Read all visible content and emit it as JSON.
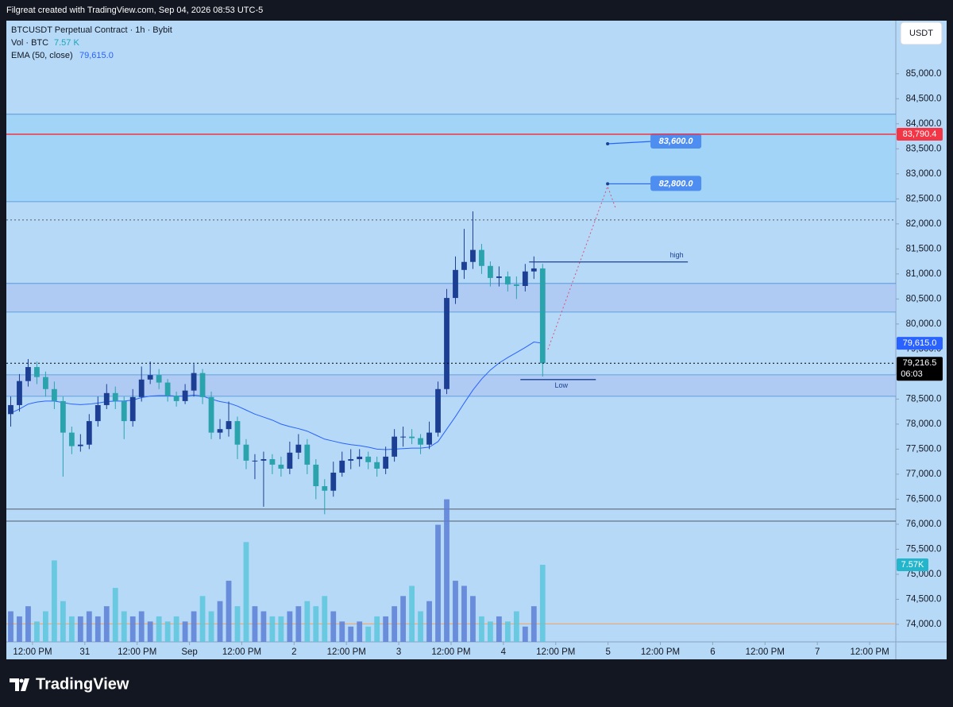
{
  "header": "Filgreat created with TradingView.com, Sep 04, 2026 08:53 UTC-5",
  "brand": "TradingView",
  "chart_data": {
    "type": "candlestick",
    "title": "BTCUSDT Perpetual Contract · 1h · Bybit",
    "volume_label": "Vol · BTC",
    "volume_value": "7.57 K",
    "ema_label": "EMA (50, close)",
    "ema_value": "79,615.0",
    "currency": "USDT",
    "up_color": "#1c3f94",
    "down_color": "#2aa3ad",
    "volume_up_color": "#5d7fd6",
    "volume_down_color": "#5cc6dc",
    "ema_color": "#2962ff",
    "xlim": [
      0,
      204
    ],
    "xticks": [
      {
        "value": 6,
        "label": "12:00 PM"
      },
      {
        "value": 18,
        "label": "31"
      },
      {
        "value": 30,
        "label": "12:00 PM"
      },
      {
        "value": 42,
        "label": "Sep"
      },
      {
        "value": 54,
        "label": "12:00 PM"
      },
      {
        "value": 66,
        "label": "2"
      },
      {
        "value": 78,
        "label": "12:00 PM"
      },
      {
        "value": 90,
        "label": "3"
      },
      {
        "value": 102,
        "label": "12:00 PM"
      },
      {
        "value": 114,
        "label": "4"
      },
      {
        "value": 126,
        "label": "12:00 PM"
      },
      {
        "value": 138,
        "label": "5"
      },
      {
        "value": 150,
        "label": "12:00 PM"
      },
      {
        "value": 162,
        "label": "6"
      },
      {
        "value": 174,
        "label": "12:00 PM"
      },
      {
        "value": 186,
        "label": "7"
      },
      {
        "value": 198,
        "label": "12:00 PM"
      }
    ],
    "ylim": [
      73650,
      86060
    ],
    "yticks": [
      {
        "value": 74000,
        "label": "74,000.0"
      },
      {
        "value": 74500,
        "label": "74,500.0"
      },
      {
        "value": 75000,
        "label": "75,000.0"
      },
      {
        "value": 75500,
        "label": "75,500.0"
      },
      {
        "value": 76000,
        "label": "76,000.0"
      },
      {
        "value": 76500,
        "label": "76,500.0"
      },
      {
        "value": 77000,
        "label": "77,000.0"
      },
      {
        "value": 77500,
        "label": "77,500.0"
      },
      {
        "value": 78000,
        "label": "78,000.0"
      },
      {
        "value": 78500,
        "label": "78,500.0"
      },
      {
        "value": 79000,
        "label": "79,000.0"
      },
      {
        "value": 79500,
        "label": "79,500.0"
      },
      {
        "value": 80000,
        "label": "80,000.0"
      },
      {
        "value": 80500,
        "label": "80,500.0"
      },
      {
        "value": 81000,
        "label": "81,000.0"
      },
      {
        "value": 81500,
        "label": "81,500.0"
      },
      {
        "value": 82000,
        "label": "82,000.0"
      },
      {
        "value": 82500,
        "label": "82,500.0"
      },
      {
        "value": 83000,
        "label": "83,000.0"
      },
      {
        "value": 83500,
        "label": "83,500.0"
      },
      {
        "value": 84000,
        "label": "84,000.0"
      },
      {
        "value": 84500,
        "label": "84,500.0"
      },
      {
        "value": 85000,
        "label": "85,000.0"
      }
    ],
    "vlim": [
      0,
      61
    ],
    "x": [
      1,
      3,
      5,
      7,
      9,
      11,
      13,
      15,
      17,
      19,
      21,
      23,
      25,
      27,
      29,
      31,
      33,
      35,
      37,
      39,
      41,
      43,
      45,
      47,
      49,
      51,
      53,
      55,
      57,
      59,
      61,
      63,
      65,
      67,
      69,
      71,
      73,
      75,
      77,
      79,
      81,
      83,
      85,
      87,
      89,
      91,
      93,
      95,
      97,
      99,
      101,
      103,
      105,
      107,
      109,
      111,
      113,
      115,
      117,
      119,
      121,
      123
    ],
    "open": [
      78200,
      78380,
      78860,
      79140,
      78940,
      78700,
      78460,
      77830,
      77560,
      77590,
      78060,
      78380,
      78620,
      78460,
      78060,
      78540,
      78890,
      78980,
      78830,
      78570,
      78460,
      78670,
      79020,
      78540,
      77830,
      77900,
      78060,
      77590,
      77270,
      77270,
      77300,
      77190,
      77110,
      77430,
      77590,
      77190,
      76760,
      76670,
      77030,
      77270,
      77300,
      77350,
      77240,
      77110,
      77350,
      77750,
      77750,
      77720,
      77590,
      77830,
      78700,
      80520,
      81080,
      81240,
      81480,
      81160,
      80920,
      80950,
      80790,
      80760,
      81050,
      81110
    ],
    "high": [
      78550,
      79000,
      79300,
      79250,
      79050,
      78850,
      78550,
      77950,
      77800,
      78200,
      78550,
      78800,
      78750,
      78550,
      78700,
      79150,
      79250,
      79100,
      78900,
      78650,
      78800,
      79200,
      79100,
      78650,
      78100,
      78450,
      78150,
      77700,
      77400,
      77450,
      77400,
      77350,
      77650,
      77800,
      77700,
      77300,
      76900,
      77250,
      77450,
      77500,
      77500,
      77450,
      77350,
      77550,
      77900,
      77950,
      77900,
      77800,
      78050,
      78850,
      80700,
      81350,
      81900,
      82250,
      81600,
      81250,
      81150,
      81050,
      80950,
      81200,
      81350,
      81200
    ],
    "low": [
      77950,
      78250,
      78750,
      78800,
      78550,
      78300,
      76950,
      77400,
      77450,
      77500,
      77950,
      78300,
      78300,
      77700,
      77950,
      78450,
      78800,
      78700,
      78450,
      78350,
      78400,
      78550,
      78400,
      77700,
      77700,
      77750,
      77300,
      77100,
      76900,
      76350,
      77000,
      76950,
      77000,
      77300,
      77000,
      76500,
      76200,
      76550,
      76950,
      77100,
      77150,
      77100,
      76950,
      77000,
      77250,
      77550,
      77600,
      77400,
      77500,
      77750,
      78600,
      80400,
      80900,
      81100,
      81000,
      80750,
      80750,
      80650,
      80500,
      80650,
      80900,
      78950
    ],
    "close": [
      78380,
      78860,
      79140,
      78940,
      78700,
      78460,
      77830,
      77560,
      77590,
      78060,
      78380,
      78620,
      78460,
      78060,
      78540,
      78890,
      78980,
      78830,
      78570,
      78460,
      78670,
      79020,
      78540,
      77830,
      77900,
      78060,
      77590,
      77270,
      77270,
      77300,
      77190,
      77110,
      77430,
      77590,
      77190,
      76760,
      76670,
      77030,
      77270,
      77300,
      77350,
      77240,
      77110,
      77350,
      77750,
      77750,
      77720,
      77590,
      77830,
      78700,
      80520,
      81080,
      81240,
      81480,
      81160,
      80920,
      80950,
      80790,
      80760,
      81050,
      81110,
      79216.5
    ],
    "volume": [
      3.0,
      2.5,
      3.5,
      2.0,
      3.0,
      8.0,
      4.0,
      2.5,
      2.5,
      3.0,
      2.5,
      3.5,
      5.3,
      3.0,
      2.5,
      3.0,
      2.0,
      2.5,
      2.0,
      2.5,
      2.0,
      3.0,
      4.5,
      3.0,
      4.0,
      6.0,
      3.5,
      9.8,
      3.5,
      3.0,
      2.5,
      2.5,
      3.0,
      3.5,
      4.0,
      3.5,
      4.5,
      3.0,
      2.0,
      1.5,
      2.0,
      1.5,
      2.5,
      2.5,
      3.5,
      4.5,
      5.5,
      3.0,
      4.0,
      11.5,
      14.0,
      6.0,
      5.5,
      4.5,
      2.5,
      2.0,
      2.5,
      2.0,
      3.0,
      1.5,
      3.5,
      7.57
    ],
    "ema": [
      78220,
      78300,
      78400,
      78440,
      78460,
      78460,
      78430,
      78400,
      78390,
      78400,
      78420,
      78450,
      78460,
      78460,
      78480,
      78530,
      78560,
      78570,
      78570,
      78560,
      78560,
      78580,
      78560,
      78500,
      78450,
      78420,
      78360,
      78280,
      78200,
      78140,
      78080,
      78000,
      77950,
      77910,
      77860,
      77780,
      77700,
      77660,
      77620,
      77590,
      77570,
      77540,
      77500,
      77490,
      77500,
      77510,
      77520,
      77520,
      77540,
      77650,
      77900,
      78150,
      78420,
      78680,
      78900,
      79080,
      79220,
      79330,
      79430,
      79530,
      79640,
      79615
    ],
    "zones": [
      {
        "from": 84190,
        "to": 82444,
        "color": "#8fd0f5"
      },
      {
        "from": 80810,
        "to": 80238,
        "color": "#a9bff0"
      },
      {
        "from": 78984,
        "to": 78556,
        "color": "#a9bff0"
      }
    ],
    "levels": [
      {
        "value": 82079,
        "color": "#555c6a",
        "style": "dotted"
      },
      {
        "value": 76302,
        "color": "#555c6a",
        "style": "solid"
      },
      {
        "value": 76063,
        "color": "#555c6a",
        "style": "solid"
      },
      {
        "value": 74010,
        "color": "#f5a25d",
        "style": "solid"
      }
    ],
    "price_tags": [
      {
        "value": 83790.4,
        "label": "83,790.4",
        "color": "#f23645",
        "style": "solid"
      },
      {
        "value": 79615,
        "label": "79,615.0",
        "color": "#2962ff",
        "style": "none"
      },
      {
        "value": 79216.5,
        "label": "79,216.5",
        "sub": "06:03",
        "color": "#000000",
        "style": "dotted"
      }
    ],
    "volume_tag": {
      "value": 7.57,
      "label": "7.57K",
      "color": "#22b5cc"
    },
    "targets": [
      {
        "x": 137.9,
        "value": 83600,
        "label": "83,600.0"
      },
      {
        "x": 137.9,
        "value": 82800,
        "label": "82,800.0"
      }
    ],
    "projection": {
      "x": [
        124.2,
        137.9,
        139.7
      ],
      "values": [
        79490,
        82750,
        82320
      ],
      "color": "#e0507a"
    },
    "marks": [
      {
        "label": "high",
        "x": [
          119.9,
          156.3
        ],
        "value": 81240
      },
      {
        "label": "Low",
        "x": [
          117.9,
          135.2
        ],
        "value": 78890
      }
    ]
  }
}
